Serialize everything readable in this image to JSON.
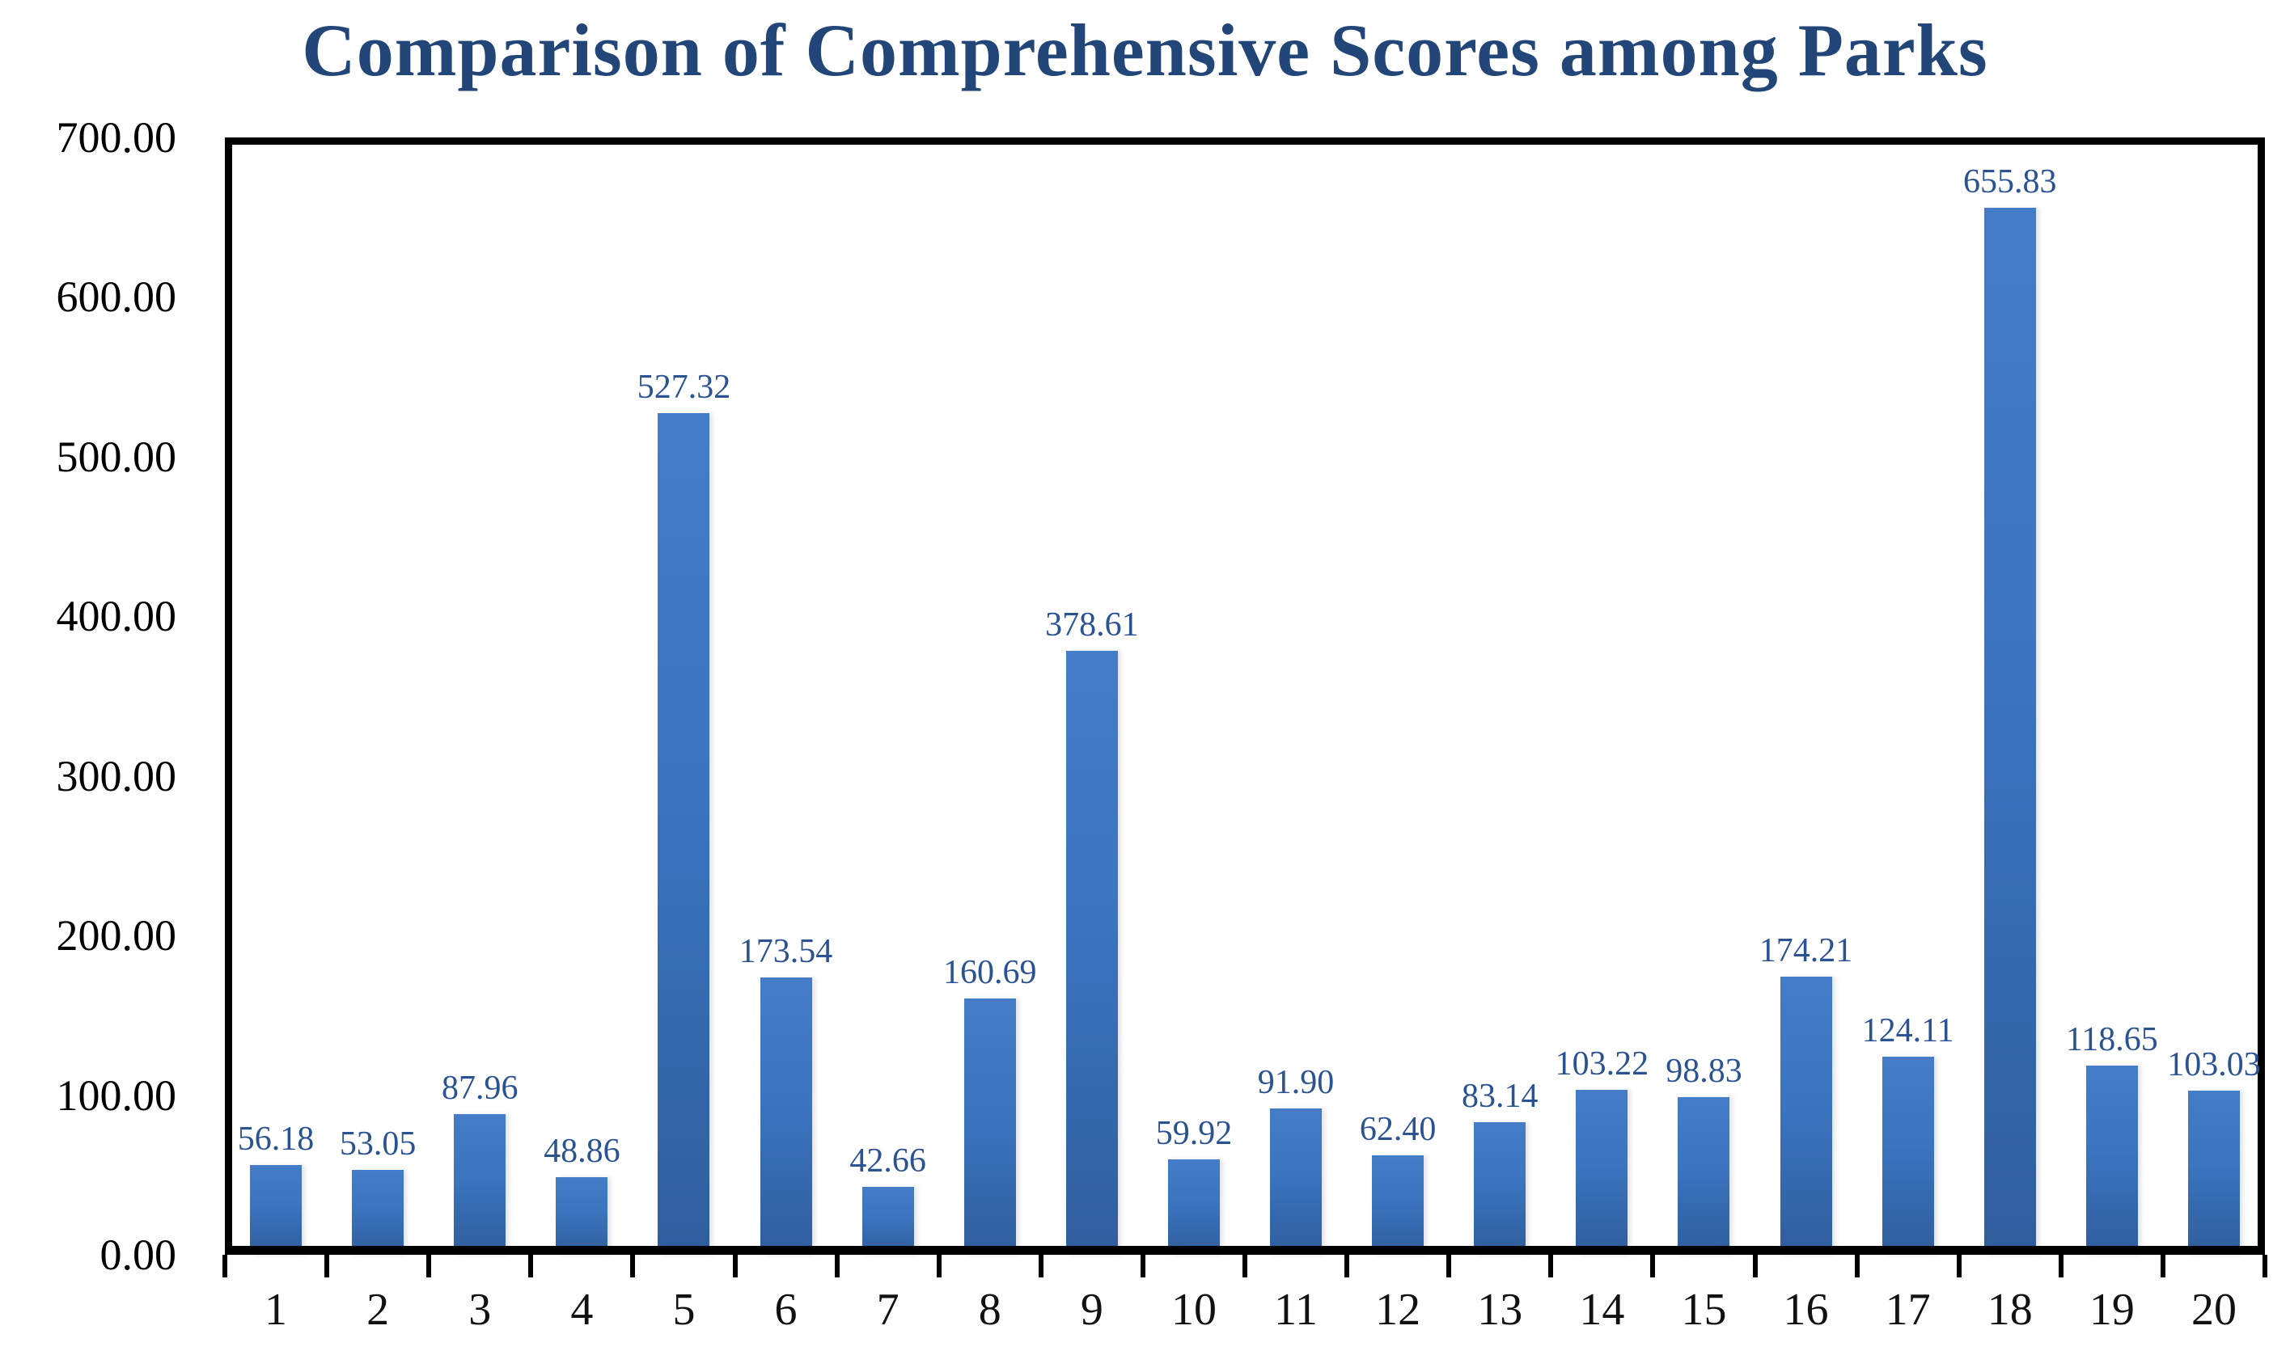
{
  "title": "Comparison of Comprehensive Scores among Parks",
  "chart_data": {
    "type": "bar",
    "title": "Comparison of Comprehensive Scores among Parks",
    "categories": [
      "1",
      "2",
      "3",
      "4",
      "5",
      "6",
      "7",
      "8",
      "9",
      "10",
      "11",
      "12",
      "13",
      "14",
      "15",
      "16",
      "17",
      "18",
      "19",
      "20"
    ],
    "values": [
      56.18,
      53.05,
      87.96,
      48.86,
      527.32,
      173.54,
      42.66,
      160.69,
      378.61,
      59.92,
      91.9,
      62.4,
      83.14,
      103.22,
      98.83,
      174.21,
      124.11,
      655.83,
      118.65,
      103.03
    ],
    "data_labels": [
      "56.18",
      "53.05",
      "87.96",
      "48.86",
      "527.32",
      "173.54",
      "42.66",
      "160.69",
      "378.61",
      "59.92",
      "91.90",
      "62.40",
      "83.14",
      "103.22",
      "98.83",
      "174.21",
      "124.11",
      "655.83",
      "118.65",
      "103.03"
    ],
    "xlabel": "",
    "ylabel": "",
    "ylim": [
      0,
      700
    ],
    "ytick_step": 100,
    "ytick_labels": [
      "0.00",
      "100.00",
      "200.00",
      "300.00",
      "400.00",
      "500.00",
      "600.00",
      "700.00"
    ],
    "grid": false,
    "legend": "none",
    "colors": {
      "bar_base": "#3B74BF",
      "bar_gradient_top": "#447CC8",
      "bar_gradient_bottom": "#2F5E9D",
      "data_label": "#2B5391",
      "title": "#234679",
      "axis": "#000000"
    }
  }
}
